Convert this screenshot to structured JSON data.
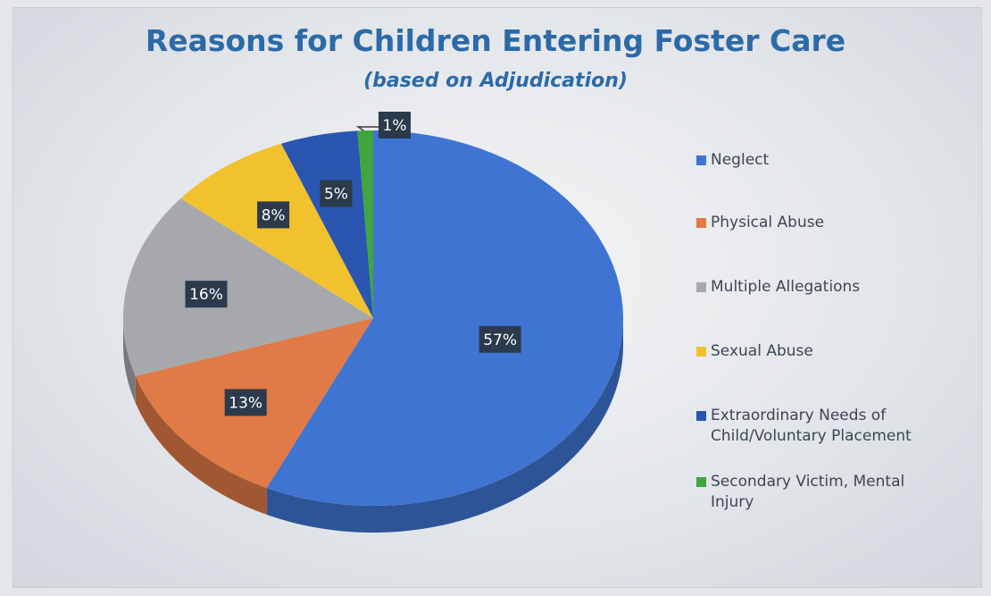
{
  "chart_data": {
    "type": "pie",
    "title": "Reasons for Children Entering Foster Care",
    "subtitle": "(based on Adjudication)",
    "categories": [
      "Neglect",
      "Physical Abuse",
      "Multiple Allegations",
      "Sexual Abuse",
      "Extraordinary Needs of Child/Voluntary Placement",
      "Secondary Victim, Mental Injury"
    ],
    "legend_lines": [
      [
        "Neglect"
      ],
      [
        "Physical Abuse"
      ],
      [
        "Multiple Allegations"
      ],
      [
        "Sexual Abuse"
      ],
      [
        "Extraordinary Needs of",
        "Child/Voluntary Placement"
      ],
      [
        "Secondary Victim, Mental",
        "Injury"
      ]
    ],
    "values": [
      57,
      13,
      16,
      8,
      5,
      1
    ],
    "data_labels": [
      "57%",
      "13%",
      "16%",
      "8%",
      "5%",
      "1%"
    ],
    "colors": [
      "#3f74d2",
      "#e07a46",
      "#a6a8ab",
      "#f2c12e",
      "#2a55b0",
      "#3ea63c"
    ],
    "legend_placement": "right",
    "style": "3d"
  }
}
